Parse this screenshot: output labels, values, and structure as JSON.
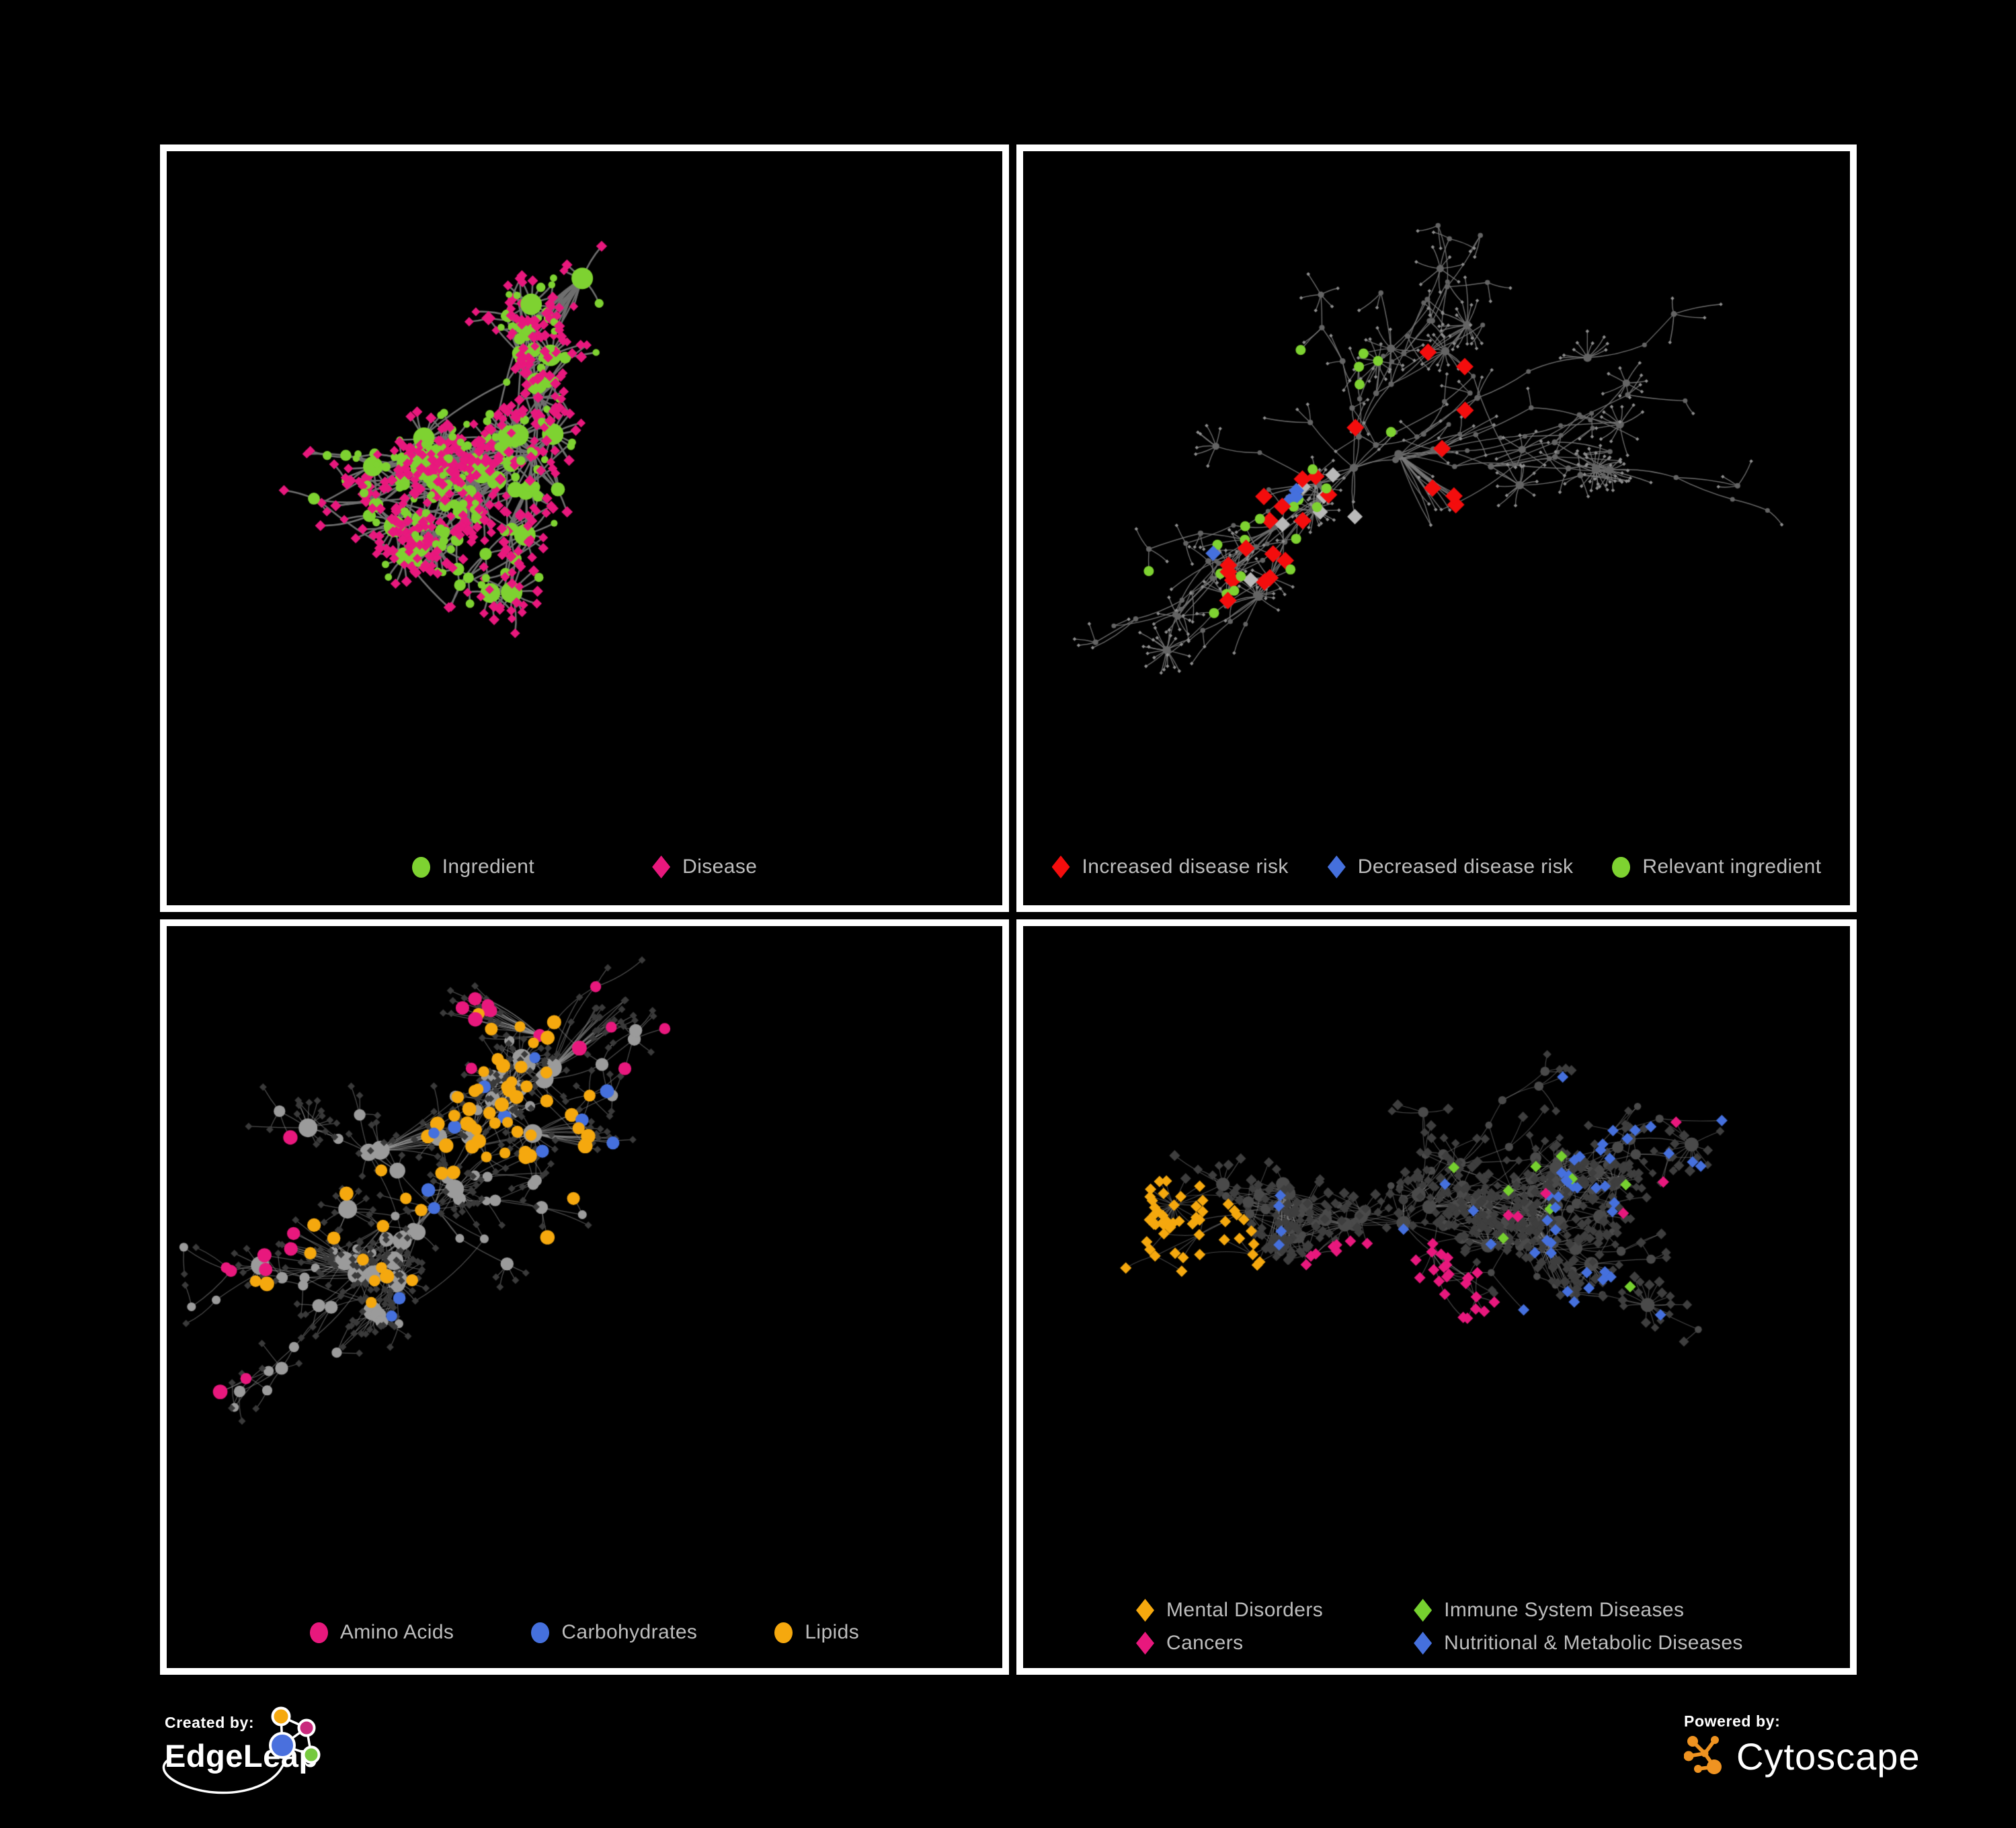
{
  "poster": {
    "background_color": "#000000",
    "panel_border_color": "#ffffff",
    "legend_text_color": "#bdbdbd"
  },
  "panels": [
    {
      "id": "ingredient-disease-network",
      "legend": [
        {
          "label": "Ingredient",
          "shape": "circle",
          "color": "#7ed231"
        },
        {
          "label": "Disease",
          "shape": "diamond",
          "color": "#e8187d"
        }
      ],
      "colors": {
        "edge": "#6f6f6f",
        "ingredient": "#7ed231",
        "disease": "#e8187d"
      }
    },
    {
      "id": "disease-risk-network",
      "legend": [
        {
          "label": "Increased disease risk",
          "shape": "diamond",
          "color": "#f40d0d"
        },
        {
          "label": "Decreased disease risk",
          "shape": "diamond",
          "color": "#4570dd"
        },
        {
          "label": "Relevant ingredient",
          "shape": "circle",
          "color": "#7ed231"
        }
      ],
      "colors": {
        "edge": "#787878",
        "leaf": "#8f8f8f",
        "hub": "#646464",
        "increased": "#f40d0d",
        "decreased": "#4570dd",
        "neutral": "#b9b9b9",
        "relevant": "#7ed231"
      }
    },
    {
      "id": "nutrient-class-network",
      "legend": [
        {
          "label": "Amino Acids",
          "shape": "circle",
          "color": "#e8187d"
        },
        {
          "label": "Carbohydrates",
          "shape": "circle",
          "color": "#4570dd"
        },
        {
          "label": "Lipids",
          "shape": "circle",
          "color": "#f5a80e"
        }
      ],
      "colors": {
        "edge": "#9a9a9a",
        "leaf": "#3a3a3a",
        "hub": "#9b9b9b",
        "amino": "#e8187d",
        "carb": "#4570dd",
        "lipid": "#f5a80e"
      }
    },
    {
      "id": "disease-class-network",
      "legend": [
        {
          "label": "Mental Disorders",
          "shape": "diamond",
          "color": "#f5a80e"
        },
        {
          "label": "Immune System Diseases",
          "shape": "diamond",
          "color": "#76d02f"
        },
        {
          "label": "Cancers",
          "shape": "diamond",
          "color": "#e8187d"
        },
        {
          "label": "Nutritional & Metabolic Diseases",
          "shape": "diamond",
          "color": "#4570dd"
        }
      ],
      "colors": {
        "edge": "#9a9a9a",
        "leaf": "#3e3e3e",
        "hub": "#4a4a4a",
        "mental": "#f5a80e",
        "immune": "#76d02f",
        "cancer": "#e8187d",
        "nutritional": "#4570dd"
      }
    }
  ],
  "footer": {
    "created_by_label": "Created by:",
    "creator_name": "EdgeLeap",
    "powered_by_label": "Powered by:",
    "engine_name": "Cytoscape",
    "edgeleap_logo_colors": {
      "orange": "#f5a80e",
      "pink": "#c9297d",
      "blue": "#4a70dd",
      "green": "#76c93f",
      "stroke": "#ffffff"
    },
    "cytoscape_logo_color": "#ef9321"
  }
}
